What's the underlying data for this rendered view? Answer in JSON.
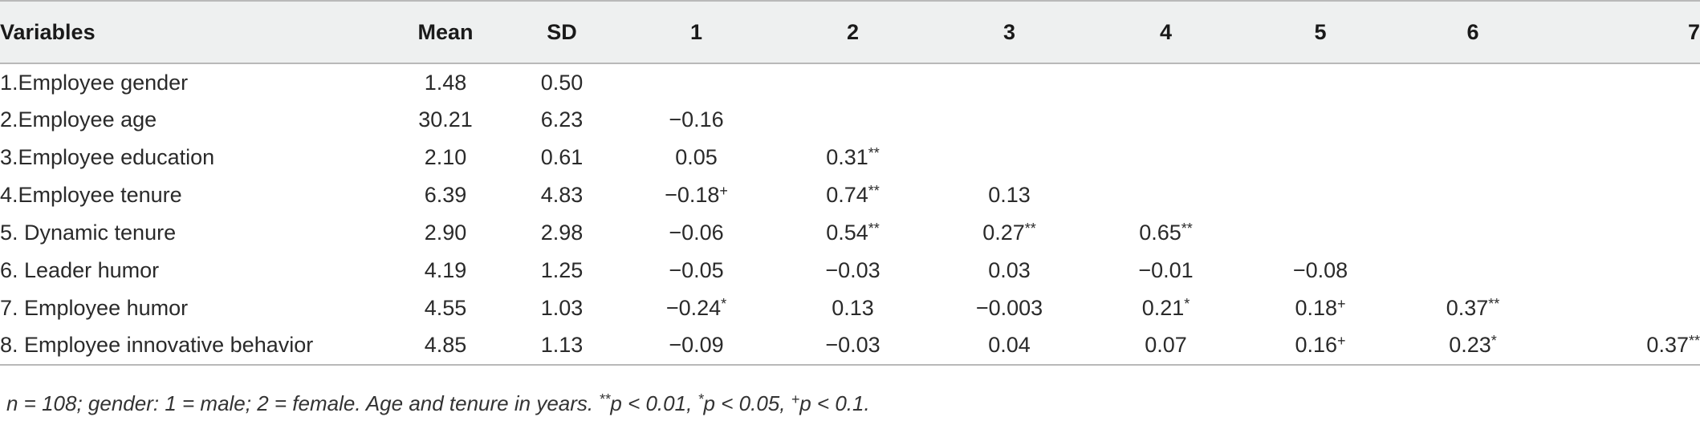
{
  "table": {
    "headers": [
      "Variables",
      "Mean",
      "SD",
      "1",
      "2",
      "3",
      "4",
      "5",
      "6",
      "7"
    ],
    "rows": [
      [
        "1.Employee gender",
        "1.48",
        "0.50",
        "",
        "",
        "",
        "",
        "",
        "",
        ""
      ],
      [
        "2.Employee age",
        "30.21",
        "6.23",
        "−0.16",
        "",
        "",
        "",
        "",
        "",
        ""
      ],
      [
        "3.Employee education",
        "2.10",
        "0.61",
        "0.05",
        "0.31**",
        "",
        "",
        "",
        "",
        ""
      ],
      [
        "4.Employee tenure",
        "6.39",
        "4.83",
        "−0.18+",
        "0.74**",
        "0.13",
        "",
        "",
        "",
        ""
      ],
      [
        "5. Dynamic tenure",
        "2.90",
        "2.98",
        "−0.06",
        "0.54**",
        "0.27**",
        "0.65**",
        "",
        "",
        ""
      ],
      [
        "6. Leader humor",
        "4.19",
        "1.25",
        "−0.05",
        "−0.03",
        "0.03",
        "−0.01",
        "−0.08",
        "",
        ""
      ],
      [
        "7. Employee humor",
        "4.55",
        "1.03",
        "−0.24*",
        "0.13",
        "−0.003",
        "0.21*",
        "0.18+",
        "0.37**",
        ""
      ],
      [
        "8. Employee innovative behavior",
        "4.85",
        "1.13",
        "−0.09",
        "−0.03",
        "0.04",
        "0.07",
        "0.16+",
        "0.23*",
        "0.37**"
      ]
    ]
  },
  "note": "n = 108; gender: 1 = male; 2 = female. Age and tenure in years. **p < 0.01, *p < 0.05, +p < 0.1."
}
